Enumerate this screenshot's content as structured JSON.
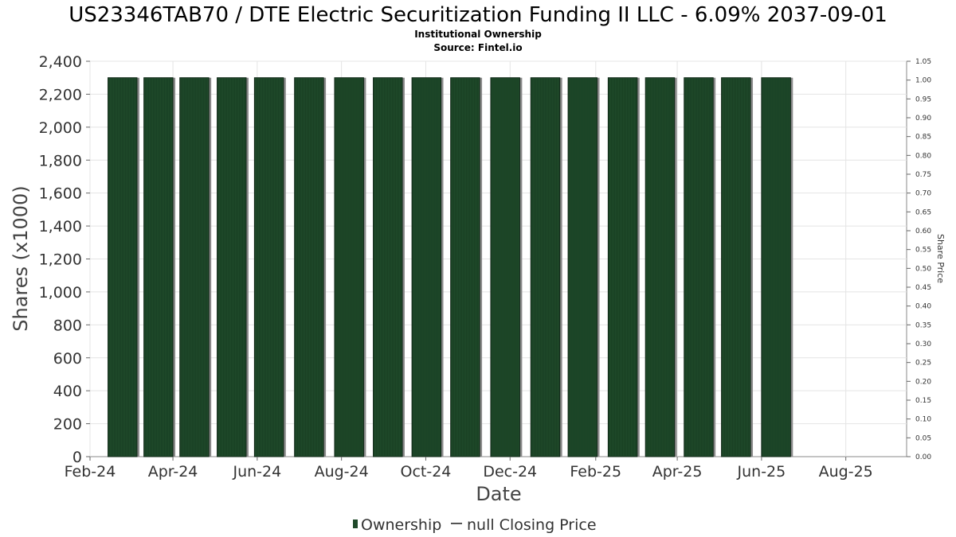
{
  "chart_data": {
    "type": "bar",
    "title": "US23346TAB70 / DTE Electric Securitization Funding II LLC - 6.09% 2037-09-01",
    "subtitle_line1": "Institutional Ownership",
    "subtitle_line2": "Source: Fintel.io",
    "xlabel": "Date",
    "ylabel": "Shares (x1000)",
    "y2label": "Share Price",
    "ylim": [
      0,
      2400
    ],
    "y2lim": [
      0,
      1.05
    ],
    "yticks": [
      "0",
      "200",
      "400",
      "600",
      "800",
      "1,000",
      "1,200",
      "1,400",
      "1,600",
      "1,800",
      "2,000",
      "2,200",
      "2,400"
    ],
    "ytick_values": [
      0,
      200,
      400,
      600,
      800,
      1000,
      1200,
      1400,
      1600,
      1800,
      2000,
      2200,
      2400
    ],
    "y2ticks": [
      "0.00",
      "0.05",
      "0.10",
      "0.15",
      "0.20",
      "0.25",
      "0.30",
      "0.35",
      "0.40",
      "0.45",
      "0.50",
      "0.55",
      "0.60",
      "0.65",
      "0.70",
      "0.75",
      "0.80",
      "0.85",
      "0.90",
      "0.95",
      "1.00",
      "1.05"
    ],
    "y2tick_values": [
      0,
      0.05,
      0.1,
      0.15,
      0.2,
      0.25,
      0.3,
      0.35,
      0.4,
      0.45,
      0.5,
      0.55,
      0.6,
      0.65,
      0.7,
      0.75,
      0.8,
      0.85,
      0.9,
      0.95,
      1.0,
      1.05
    ],
    "xlim": [
      "2024-02-01",
      "2025-09-14"
    ],
    "xticks": [
      {
        "label": "Feb-24",
        "date": "2024-02-01"
      },
      {
        "label": "Apr-24",
        "date": "2024-04-01"
      },
      {
        "label": "Jun-24",
        "date": "2024-06-01"
      },
      {
        "label": "Aug-24",
        "date": "2024-08-01"
      },
      {
        "label": "Oct-24",
        "date": "2024-10-01"
      },
      {
        "label": "Dec-24",
        "date": "2024-12-01"
      },
      {
        "label": "Feb-25",
        "date": "2025-02-01"
      },
      {
        "label": "Apr-25",
        "date": "2025-04-01"
      },
      {
        "label": "Jun-25",
        "date": "2025-06-01"
      },
      {
        "label": "Aug-25",
        "date": "2025-08-01"
      }
    ],
    "series": [
      {
        "name": "Ownership",
        "color": "#1f4a2a",
        "points": [
          {
            "start": "2024-02-14",
            "end": "2024-03-06",
            "value": 2300
          },
          {
            "start": "2024-03-11",
            "end": "2024-04-01",
            "value": 2300
          },
          {
            "start": "2024-04-06",
            "end": "2024-04-27",
            "value": 2300
          },
          {
            "start": "2024-05-03",
            "end": "2024-05-24",
            "value": 2300
          },
          {
            "start": "2024-05-30",
            "end": "2024-06-20",
            "value": 2300
          },
          {
            "start": "2024-06-28",
            "end": "2024-07-19",
            "value": 2300
          },
          {
            "start": "2024-07-27",
            "end": "2024-08-17",
            "value": 2300
          },
          {
            "start": "2024-08-24",
            "end": "2024-09-14",
            "value": 2300
          },
          {
            "start": "2024-09-21",
            "end": "2024-10-12",
            "value": 2300
          },
          {
            "start": "2024-10-19",
            "end": "2024-11-09",
            "value": 2300
          },
          {
            "start": "2024-11-17",
            "end": "2024-12-08",
            "value": 2300
          },
          {
            "start": "2024-12-16",
            "end": "2025-01-06",
            "value": 2300
          },
          {
            "start": "2025-01-12",
            "end": "2025-02-02",
            "value": 2300
          },
          {
            "start": "2025-02-10",
            "end": "2025-03-03",
            "value": 2300
          },
          {
            "start": "2025-03-09",
            "end": "2025-03-30",
            "value": 2300
          },
          {
            "start": "2025-04-06",
            "end": "2025-04-27",
            "value": 2300
          },
          {
            "start": "2025-05-03",
            "end": "2025-05-24",
            "value": 2300
          },
          {
            "start": "2025-06-01",
            "end": "2025-06-22",
            "value": 2300
          }
        ]
      },
      {
        "name": "null Closing Price",
        "color": "#555555",
        "points": []
      }
    ],
    "grid": true,
    "legend_position": "bottom-center"
  },
  "legend": {
    "ownership_label": "Ownership",
    "price_label": "null Closing Price"
  }
}
